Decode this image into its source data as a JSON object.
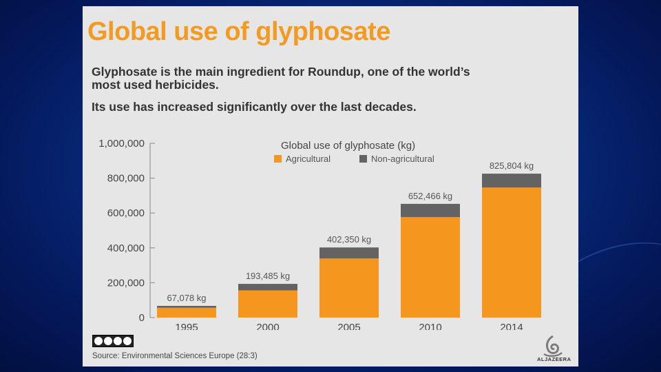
{
  "title": "Global use of glyphosate",
  "subtitle_lines": [
    "Glyphosate is the main ingredient for Roundup, one of the world’s",
    "most used herbicides.",
    "Its use has increased significantly over the last decades."
  ],
  "chart_data": {
    "type": "bar",
    "stacked": true,
    "title": "Global use of glyphosate (kg)",
    "xlabel": "",
    "ylabel": "",
    "categories": [
      "1995",
      "2000",
      "2005",
      "2010",
      "2014"
    ],
    "series": [
      {
        "name": "Agricultural",
        "color": "#f5971f",
        "values": [
          56296,
          155967,
          339150,
          576466,
          746204
        ]
      },
      {
        "name": "Non-agricultural",
        "color": "#636363",
        "values": [
          10782,
          37518,
          63200,
          76000,
          79600
        ]
      }
    ],
    "totals": [
      67078,
      193485,
      402350,
      652466,
      825804
    ],
    "total_labels": [
      "67,078 kg",
      "193,485 kg",
      "402,350 kg",
      "652,466 kg",
      "825,804 kg"
    ],
    "ylim": [
      0,
      1000000
    ],
    "yticks": [
      0,
      200000,
      400000,
      600000,
      800000,
      1000000
    ],
    "ytick_labels": [
      "0",
      "200,000",
      "400,000",
      "600,000",
      "800,000",
      "1,000,000"
    ],
    "grid": false,
    "legend_position": "top-center"
  },
  "license_badge_icons": [
    "cc-icon",
    "by-icon",
    "nc-icon",
    "sa-icon"
  ],
  "source": "Source: Environmental Sciences Europe (28:3)",
  "logo_text": "ALJAZEERA",
  "colors": {
    "title": "#f29a22",
    "panel_background": "#e6e6e6",
    "slide_background": "#072a7a"
  }
}
